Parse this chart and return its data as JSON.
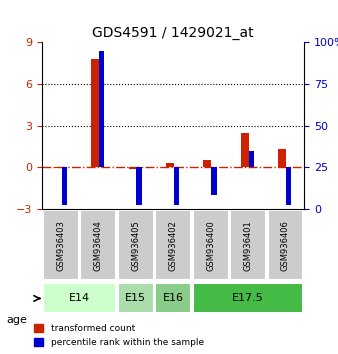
{
  "title": "GDS4591 / 1429021_at",
  "samples": [
    "GSM936403",
    "GSM936404",
    "GSM936405",
    "GSM936402",
    "GSM936400",
    "GSM936401",
    "GSM936406"
  ],
  "transformed_counts": [
    -0.05,
    7.8,
    -0.1,
    0.3,
    0.5,
    2.5,
    1.3
  ],
  "percentile_ranks": [
    2,
    95,
    2,
    2,
    8,
    35,
    2
  ],
  "age_groups": [
    {
      "label": "E14",
      "samples": [
        0,
        1
      ],
      "color": "#ccffcc"
    },
    {
      "label": "E15",
      "samples": [
        2
      ],
      "color": "#aaddaa"
    },
    {
      "label": "E16",
      "samples": [
        3
      ],
      "color": "#88cc88"
    },
    {
      "label": "E17.5",
      "samples": [
        4,
        5,
        6
      ],
      "color": "#44bb44"
    }
  ],
  "left_ylim": [
    -3,
    9
  ],
  "right_ylim": [
    0,
    100
  ],
  "left_yticks": [
    -3,
    0,
    3,
    6,
    9
  ],
  "right_yticks": [
    0,
    25,
    50,
    75,
    100
  ],
  "right_yticklabels": [
    "0",
    "25",
    "50",
    "75",
    "100%"
  ],
  "red_color": "#cc2200",
  "blue_color": "#0000cc",
  "bar_width": 0.35,
  "hline_y": 0,
  "dotted_lines": [
    3,
    6
  ],
  "legend_red": "transformed count",
  "legend_blue": "percentile rank within the sample",
  "age_label": "age",
  "background_color": "#ffffff"
}
